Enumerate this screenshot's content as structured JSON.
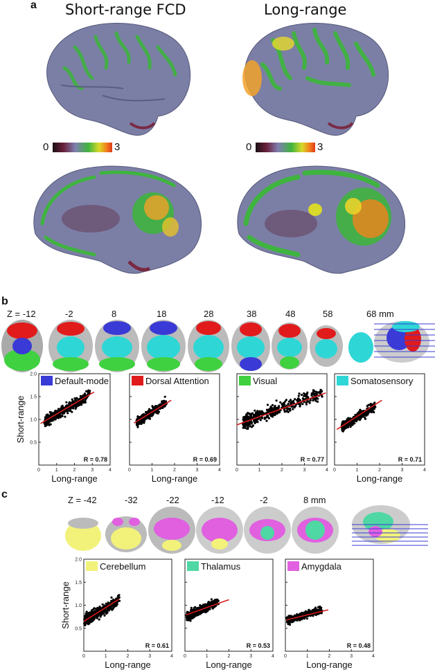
{
  "panel_a": {
    "letter": "a",
    "titles": [
      "Short-range FCD",
      "Long-range"
    ],
    "colorbar": {
      "min": "0",
      "max": "3",
      "stops": [
        "#1a0f14",
        "#6a1f3a",
        "#7f7fb0",
        "#3fb43f",
        "#d9d92a",
        "#f2831c",
        "#e03a1a"
      ]
    }
  },
  "panel_b": {
    "letter": "b",
    "slice_labels": [
      "Z = -12",
      "-2",
      "8",
      "18",
      "28",
      "38",
      "48",
      "58",
      "68 mm"
    ]
  },
  "panel_c": {
    "letter": "c",
    "slice_labels": [
      "Z = -42",
      "-32",
      "-22",
      "-12",
      "-2",
      "8 mm"
    ]
  },
  "colors": {
    "default_mode": "#3a3ad6",
    "dorsal_attention": "#e11b1b",
    "visual": "#3fd13f",
    "somatosensory": "#2fd6d6",
    "cerebellum": "#f2f27a",
    "thalamus": "#4fd7a4",
    "amygdala": "#e060e0",
    "fit_line": "#d61a1a",
    "brain_surface": "#7b7fa6"
  },
  "chart_data": [
    {
      "type": "scatter",
      "legend": "Default-mode",
      "color_key": "default_mode",
      "xlabel": "Long-range",
      "ylabel": "Short-range",
      "xlim": [
        0,
        4
      ],
      "ylim": [
        0,
        2
      ],
      "xticks": [
        "0",
        "1",
        "2",
        "3",
        "4"
      ],
      "yticks": [
        "0.5",
        "1.0",
        "1.5",
        "2.0"
      ],
      "annotation": "R = 0.78",
      "cloud": {
        "x_min": 0.35,
        "x_max": 2.9,
        "slope": 0.24,
        "intercept": 0.86,
        "spread": 0.09
      },
      "fit": [
        [
          0.1,
          0.91
        ],
        [
          3.1,
          1.6
        ]
      ]
    },
    {
      "type": "scatter",
      "legend": "Dorsal Attention",
      "color_key": "dorsal_attention",
      "xlabel": "Long-range",
      "ylabel": "",
      "xlim": [
        0,
        4
      ],
      "ylim": [
        0,
        2
      ],
      "xticks": [
        "0",
        "1",
        "2",
        "3",
        "4"
      ],
      "yticks": [],
      "annotation": "R = 0.69",
      "cloud": {
        "x_min": 0.35,
        "x_max": 1.6,
        "slope": 0.34,
        "intercept": 0.82,
        "spread": 0.08
      },
      "fit": [
        [
          0.2,
          0.92
        ],
        [
          1.85,
          1.42
        ]
      ]
    },
    {
      "type": "scatter",
      "legend": "Visual",
      "color_key": "visual",
      "xlabel": "",
      "ylabel": "",
      "xlim": [
        0,
        4
      ],
      "ylim": [
        0,
        2
      ],
      "xticks": [
        "0",
        "1",
        "2",
        "3",
        "4"
      ],
      "yticks": [],
      "annotation": "R = 0.77",
      "cloud": {
        "x_min": 0.3,
        "x_max": 3.8,
        "slope": 0.18,
        "intercept": 0.9,
        "spread": 0.12
      },
      "fit": [
        [
          0.0,
          0.88
        ],
        [
          3.95,
          1.58
        ]
      ]
    },
    {
      "type": "scatter",
      "legend": "Somatosensory",
      "color_key": "somatosensory",
      "xlabel": "Long-range",
      "ylabel": "",
      "xlim": [
        0,
        4
      ],
      "ylim": [
        0,
        2
      ],
      "xticks": [
        "0",
        "1",
        "2",
        "3",
        "4"
      ],
      "yticks": [],
      "annotation": "R = 0.71",
      "cloud": {
        "x_min": 0.35,
        "x_max": 1.8,
        "slope": 0.32,
        "intercept": 0.72,
        "spread": 0.08
      },
      "fit": [
        [
          0.1,
          0.78
        ],
        [
          2.1,
          1.42
        ]
      ]
    },
    {
      "type": "scatter",
      "legend": "Cerebellum",
      "color_key": "cerebellum",
      "xlabel": "Long-range",
      "ylabel": "Short-range",
      "xlim": [
        0,
        4
      ],
      "ylim": [
        0,
        2
      ],
      "xticks": [
        "0",
        "1",
        "2",
        "3",
        "4"
      ],
      "yticks": [
        "0.5",
        "1.0",
        "1.5",
        "2.0"
      ],
      "annotation": "R = 0.61",
      "cloud": {
        "x_min": 0.05,
        "x_max": 1.6,
        "slope": 0.28,
        "intercept": 0.66,
        "spread": 0.1
      },
      "fit": [
        [
          0.0,
          0.65
        ],
        [
          1.6,
          1.13
        ]
      ]
    },
    {
      "type": "scatter",
      "legend": "Thalamus",
      "color_key": "thalamus",
      "xlabel": "Long-range",
      "ylabel": "",
      "xlim": [
        0,
        4
      ],
      "ylim": [
        0,
        2
      ],
      "xticks": [
        "0",
        "1",
        "2",
        "3",
        "4"
      ],
      "yticks": [],
      "annotation": "R = 0.53",
      "cloud": {
        "x_min": 0.1,
        "x_max": 1.5,
        "slope": 0.22,
        "intercept": 0.74,
        "spread": 0.08
      },
      "fit": [
        [
          0.05,
          0.79
        ],
        [
          2.0,
          1.12
        ]
      ]
    },
    {
      "type": "scatter",
      "legend": "Amygdala",
      "color_key": "amygdala",
      "xlabel": "Long-range",
      "ylabel": "",
      "xlim": [
        0,
        4
      ],
      "ylim": [
        0,
        2
      ],
      "xticks": [
        "0",
        "1",
        "2",
        "3",
        "4"
      ],
      "yticks": [],
      "annotation": "R = 0.48",
      "cloud": {
        "x_min": 0.1,
        "x_max": 1.7,
        "slope": 0.14,
        "intercept": 0.66,
        "spread": 0.06
      },
      "fit": [
        [
          0.05,
          0.68
        ],
        [
          1.95,
          0.9
        ]
      ]
    }
  ]
}
